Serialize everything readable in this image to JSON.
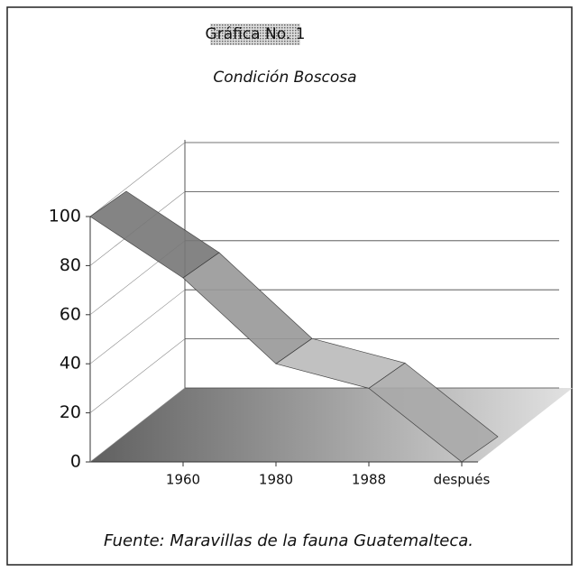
{
  "chart_data": {
    "type": "line",
    "title": "Gráfica No. 1",
    "subtitle": "Condición Boscosa",
    "source": "Fuente:  Maravillas de la fauna Guatemalteca.",
    "categories": [
      null,
      "1960",
      "1980",
      "1988",
      "después"
    ],
    "values": [
      100,
      75,
      40,
      30,
      0
    ],
    "ylim": [
      0,
      100
    ],
    "yticks": [
      0,
      20,
      40,
      60,
      80,
      100
    ],
    "grid": true,
    "color": "#999999"
  }
}
